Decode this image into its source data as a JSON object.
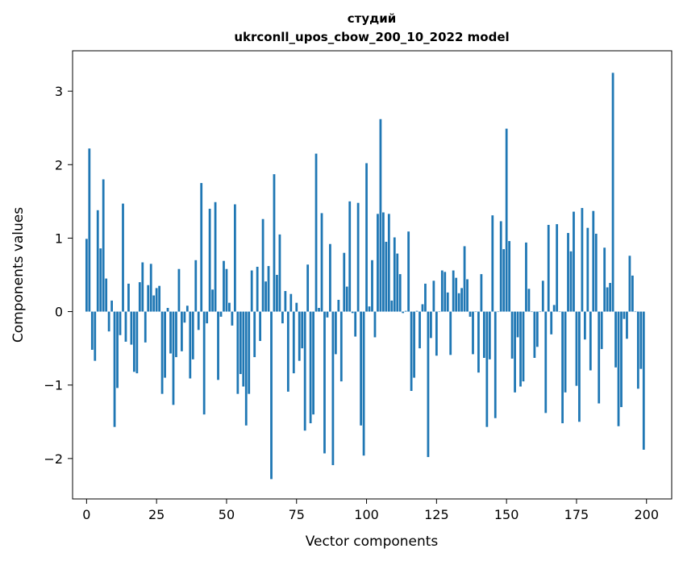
{
  "chart_data": {
    "type": "bar",
    "title": "студий",
    "subtitle": "ukrconll_upos_cbow_200_10_2022 model",
    "xlabel": "Vector components",
    "ylabel": "Components values",
    "xlim": [
      -5,
      209
    ],
    "ylim": [
      -2.55,
      3.55
    ],
    "xticks": [
      0,
      25,
      50,
      75,
      100,
      125,
      150,
      175,
      200
    ],
    "yticks": [
      -2,
      -1,
      0,
      1,
      2,
      3
    ],
    "xtick_labels": [
      "0",
      "25",
      "50",
      "75",
      "100",
      "125",
      "150",
      "175",
      "200"
    ],
    "ytick_labels": [
      "−2",
      "−1",
      "0",
      "1",
      "2",
      "3"
    ],
    "grid": false,
    "bar_color": "#1f77b4",
    "x": [
      0,
      1,
      2,
      3,
      4,
      5,
      6,
      7,
      8,
      9,
      10,
      11,
      12,
      13,
      14,
      15,
      16,
      17,
      18,
      19,
      20,
      21,
      22,
      23,
      24,
      25,
      26,
      27,
      28,
      29,
      30,
      31,
      32,
      33,
      34,
      35,
      36,
      37,
      38,
      39,
      40,
      41,
      42,
      43,
      44,
      45,
      46,
      47,
      48,
      49,
      50,
      51,
      52,
      53,
      54,
      55,
      56,
      57,
      58,
      59,
      60,
      61,
      62,
      63,
      64,
      65,
      66,
      67,
      68,
      69,
      70,
      71,
      72,
      73,
      74,
      75,
      76,
      77,
      78,
      79,
      80,
      81,
      82,
      83,
      84,
      85,
      86,
      87,
      88,
      89,
      90,
      91,
      92,
      93,
      94,
      95,
      96,
      97,
      98,
      99,
      100,
      101,
      102,
      103,
      104,
      105,
      106,
      107,
      108,
      109,
      110,
      111,
      112,
      113,
      114,
      115,
      116,
      117,
      118,
      119,
      120,
      121,
      122,
      123,
      124,
      125,
      126,
      127,
      128,
      129,
      130,
      131,
      132,
      133,
      134,
      135,
      136,
      137,
      138,
      139,
      140,
      141,
      142,
      143,
      144,
      145,
      146,
      147,
      148,
      149,
      150,
      151,
      152,
      153,
      154,
      155,
      156,
      157,
      158,
      159,
      160,
      161,
      162,
      163,
      164,
      165,
      166,
      167,
      168,
      169,
      170,
      171,
      172,
      173,
      174,
      175,
      176,
      177,
      178,
      179,
      180,
      181,
      182,
      183,
      184,
      185,
      186,
      187,
      188,
      189,
      190,
      191,
      192,
      193,
      194,
      195,
      196,
      197,
      198,
      199
    ],
    "values": [
      0.99,
      2.22,
      -0.52,
      -0.67,
      1.38,
      0.86,
      1.8,
      0.45,
      -0.27,
      0.15,
      -1.57,
      -1.04,
      -0.32,
      1.47,
      -0.41,
      0.38,
      -0.45,
      -0.82,
      -0.84,
      0.4,
      0.67,
      -0.42,
      0.36,
      0.65,
      0.22,
      0.32,
      0.35,
      -1.12,
      -0.9,
      0.05,
      -0.57,
      -1.27,
      -0.62,
      0.58,
      -0.54,
      -0.15,
      0.08,
      -0.91,
      -0.65,
      0.7,
      -0.25,
      1.75,
      -1.4,
      -0.16,
      1.4,
      0.3,
      1.49,
      -0.93,
      -0.07,
      0.69,
      0.58,
      0.12,
      -0.19,
      1.46,
      -1.12,
      -0.85,
      -1.02,
      -1.55,
      -1.12,
      0.56,
      -0.62,
      0.61,
      -0.4,
      1.26,
      0.41,
      0.62,
      -2.28,
      1.87,
      0.5,
      1.05,
      -0.16,
      0.28,
      -1.09,
      0.24,
      -0.84,
      0.12,
      -0.67,
      -0.5,
      -1.62,
      0.64,
      -1.52,
      -1.4,
      2.15,
      0.05,
      1.34,
      -1.93,
      -0.08,
      0.92,
      -2.09,
      -0.58,
      0.16,
      -0.95,
      0.8,
      0.34,
      1.5,
      -0.02,
      -0.34,
      1.48,
      -1.55,
      -1.96,
      2.02,
      0.07,
      0.7,
      -0.35,
      1.33,
      2.62,
      1.35,
      0.95,
      1.33,
      0.15,
      1.01,
      0.79,
      0.51,
      -0.02,
      0.01,
      1.09,
      -1.08,
      -0.9,
      0.01,
      -0.5,
      0.1,
      0.38,
      -1.98,
      -0.36,
      0.42,
      -0.6,
      0.0,
      0.56,
      0.54,
      0.26,
      -0.59,
      0.56,
      0.46,
      0.25,
      0.32,
      0.89,
      0.44,
      -0.07,
      -0.58,
      0.0,
      -0.83,
      0.51,
      -0.63,
      -1.57,
      -0.65,
      1.31,
      -1.45,
      0.0,
      1.23,
      0.85,
      2.49,
      0.96,
      -0.64,
      -1.1,
      -0.35,
      -1.02,
      -0.95,
      0.94,
      0.31,
      0.0,
      -0.63,
      -0.48,
      0.0,
      0.42,
      -1.38,
      1.18,
      -0.31,
      0.09,
      1.19,
      0.0,
      -1.52,
      -1.1,
      1.07,
      0.82,
      1.36,
      -1.01,
      -1.5,
      1.41,
      -0.38,
      1.14,
      -0.8,
      1.37,
      1.06,
      -1.25,
      -0.51,
      0.87,
      0.33,
      0.39,
      3.25,
      -0.76,
      -1.56,
      -1.3,
      -0.1,
      -0.37,
      0.76,
      0.49,
      0.0,
      -1.05,
      -0.78,
      -1.88
    ]
  }
}
